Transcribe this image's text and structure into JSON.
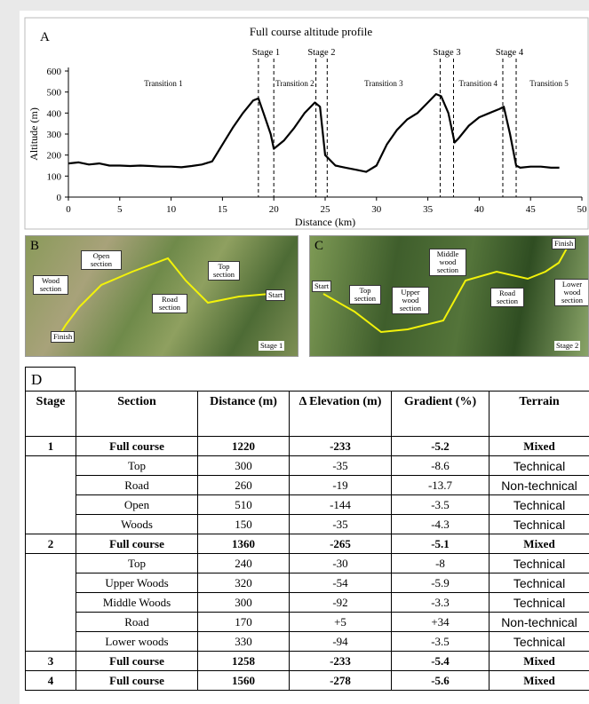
{
  "panels": {
    "a": "A",
    "b": "B",
    "c": "C",
    "d": "D"
  },
  "chart_data": {
    "type": "line",
    "title": "Full course altitude profile",
    "x_label": "Distance (km)",
    "y_label": "Altitude (m)",
    "x": [
      0,
      1,
      2,
      3,
      4,
      5,
      6,
      7,
      8,
      9,
      10,
      11,
      12,
      13,
      14,
      15,
      16,
      17,
      18,
      18.5,
      19,
      19.7,
      20,
      21,
      22,
      23,
      24,
      24.5,
      25,
      26,
      27,
      28,
      29,
      30,
      31,
      32,
      33,
      34,
      35,
      35.8,
      36.3,
      37,
      37.6,
      38,
      39,
      40,
      41,
      42,
      42.4,
      43,
      43.6,
      44,
      45,
      46,
      47,
      47.8
    ],
    "values": [
      160,
      165,
      155,
      160,
      150,
      150,
      148,
      150,
      148,
      145,
      145,
      142,
      148,
      155,
      170,
      250,
      330,
      400,
      460,
      470,
      400,
      300,
      230,
      270,
      330,
      400,
      450,
      430,
      200,
      150,
      140,
      130,
      120,
      150,
      250,
      320,
      370,
      400,
      450,
      490,
      480,
      400,
      260,
      280,
      340,
      380,
      400,
      420,
      430,
      300,
      150,
      140,
      145,
      145,
      140,
      140
    ],
    "color": "#000000",
    "xlim": [
      0,
      50
    ],
    "ylim": [
      0,
      600
    ],
    "xticks": [
      0,
      5,
      10,
      15,
      20,
      25,
      30,
      35,
      40,
      45,
      50
    ],
    "yticks": [
      0,
      100,
      200,
      300,
      400,
      500,
      600
    ],
    "stages": [
      {
        "name": "Stage 1",
        "start": 18.5,
        "end": 20
      },
      {
        "name": "Stage 2",
        "start": 24.1,
        "end": 25.2
      },
      {
        "name": "Stage 3",
        "start": 36.2,
        "end": 37.5
      },
      {
        "name": "Stage 4",
        "start": 42.3,
        "end": 43.6
      }
    ],
    "transitions": [
      "Transition 1",
      "Transition 2",
      "Transition 3",
      "Transition 4",
      "Transition 5"
    ]
  },
  "map_b": {
    "open": "Open section",
    "wood": "Wood section",
    "road": "Road section",
    "top": "Top section",
    "start": "Start",
    "finish": "Finish",
    "stage": "Stage 1"
  },
  "map_c": {
    "top": "Top section",
    "upper": "Upper wood section",
    "middle": "Middle wood section",
    "road": "Road section",
    "lower": "Lower wood section",
    "start": "Start",
    "finish": "Finish",
    "stage": "Stage 2"
  },
  "table": {
    "header": [
      "Stage",
      "Section",
      "Distance (m)",
      "Δ Elevation (m)",
      "Gradient (%)",
      "Terrain"
    ],
    "rows": [
      [
        "1",
        "Full course",
        "1220",
        "-233",
        "-5.2",
        "Mixed"
      ],
      [
        "Top",
        "300",
        "-35",
        "-8.6",
        "Technical"
      ],
      [
        "Road",
        "260",
        "-19",
        "-13.7",
        "Non-technical"
      ],
      [
        "Open",
        "510",
        "-144",
        "-3.5",
        "Technical"
      ],
      [
        "Woods",
        "150",
        "-35",
        "-4.3",
        "Technical"
      ],
      [
        "2",
        "Full course",
        "1360",
        "-265",
        "-5.1",
        "Mixed"
      ],
      [
        "Top",
        "240",
        "-30",
        "-8",
        "Technical"
      ],
      [
        "Upper Woods",
        "320",
        "-54",
        "-5.9",
        "Technical"
      ],
      [
        "Middle Woods",
        "300",
        "-92",
        "-3.3",
        "Technical"
      ],
      [
        "Road",
        "170",
        "+5",
        "+34",
        "Non-technical"
      ],
      [
        "Lower woods",
        "330",
        "-94",
        "-3.5",
        "Technical"
      ],
      [
        "3",
        "Full course",
        "1258",
        "-233",
        "-5.4",
        "Mixed"
      ],
      [
        "4",
        "Full course",
        "1560",
        "-278",
        "-5.6",
        "Mixed"
      ]
    ]
  }
}
